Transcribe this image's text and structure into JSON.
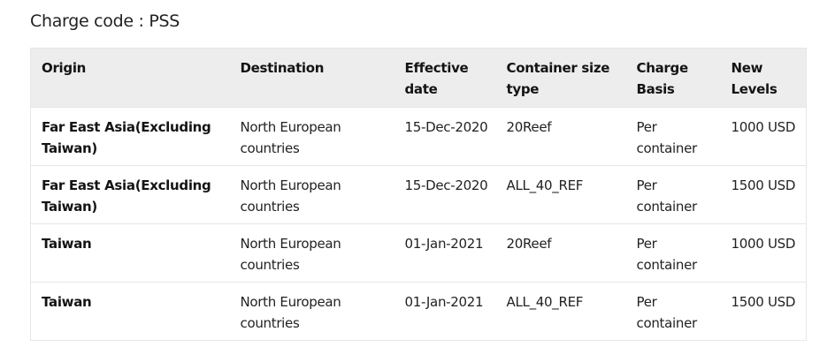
{
  "title": "Charge code : PSS",
  "table": {
    "headers": [
      "Origin",
      "Destination",
      "Effective date",
      "Container size type",
      "Charge Basis",
      "New Levels"
    ],
    "rows": [
      [
        "Far East Asia(Excluding Taiwan)",
        "North European countries",
        "15-Dec-2020",
        "20Reef",
        "Per container",
        "1000 USD"
      ],
      [
        "Far East Asia(Excluding Taiwan)",
        "North European countries",
        "15-Dec-2020",
        "ALL_40_REF",
        "Per container",
        "1500 USD"
      ],
      [
        "Taiwan",
        "North European countries",
        "01-Jan-2021",
        "20Reef",
        "Per container",
        "1000 USD"
      ],
      [
        "Taiwan",
        "North European countries",
        "01-Jan-2021",
        "ALL_40_REF",
        "Per container",
        "1500 USD"
      ]
    ]
  }
}
